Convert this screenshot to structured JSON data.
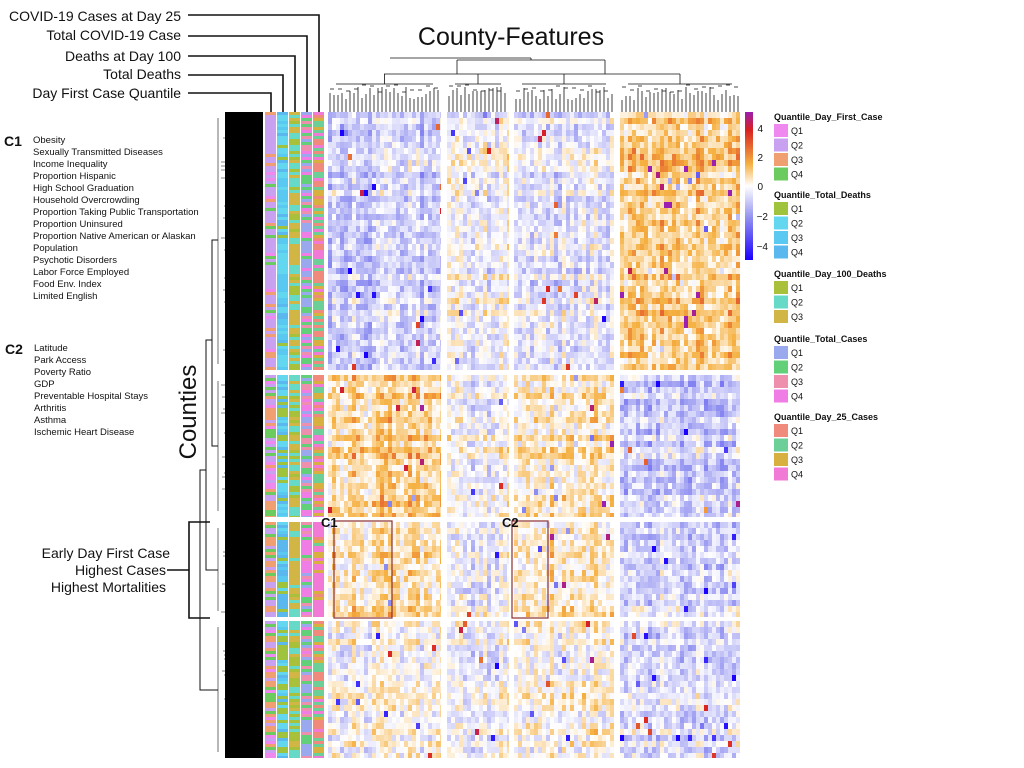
{
  "chart_data": {
    "type": "heatmap",
    "title": "County-Features",
    "ylabel": "Counties",
    "annotation_track_labels": [
      "COVID-19 Cases at Day 25",
      "Total COVID-19 Case",
      "Deaths at Day 100",
      "Total Deaths",
      "Day First Case Quantile"
    ],
    "column_clusters": [
      {
        "id": "C1",
        "features": [
          "Obesity",
          "Sexually Transmitted Diseases",
          "Income Inequality",
          "Proportion Hispanic",
          "High School Graduation",
          "Household Overcrowding",
          "Proportion Taking Public Transportation",
          "Proportion Uninsured",
          "Proportion Native American or Alaskan",
          "Population",
          "Psychotic Disorders",
          "Labor Force Employed",
          "Food Env. Index",
          "Limited English"
        ]
      },
      {
        "id": "C2",
        "features": [
          "Latitude",
          "Park Access",
          "Poverty Ratio",
          "GDP",
          "Preventable Hospital Stays",
          "Arthritis",
          "Asthma",
          "Ischemic Heart Disease"
        ]
      }
    ],
    "highlighted_row_cluster": [
      "Early Day First Case",
      "Highest Cases",
      "Highest Mortalities"
    ],
    "colorbar": {
      "ticks": [
        "4",
        "2",
        "0",
        "−2",
        "−4"
      ],
      "range": [
        -4,
        4
      ],
      "colors": [
        "#1a00ff",
        "#8f8ff0",
        "#ffffff",
        "#f5b040",
        "#d82020",
        "#9b1fb0"
      ]
    },
    "legends": [
      {
        "title": "Quantile_Day_First_Case",
        "items": [
          {
            "label": "Q1",
            "color": "#ef88ef"
          },
          {
            "label": "Q2",
            "color": "#c8a2f0"
          },
          {
            "label": "Q3",
            "color": "#f0a070"
          },
          {
            "label": "Q4",
            "color": "#6ccb5f"
          }
        ]
      },
      {
        "title": "Quantile_Total_Deaths",
        "items": [
          {
            "label": "Q1",
            "color": "#9fc33d"
          },
          {
            "label": "Q2",
            "color": "#63d6f0"
          },
          {
            "label": "Q3",
            "color": "#59c9f2"
          },
          {
            "label": "Q4",
            "color": "#5bb8ee"
          }
        ]
      },
      {
        "title": "Quantile_Day_100_Deaths",
        "items": [
          {
            "label": "Q1",
            "color": "#a9c13a"
          },
          {
            "label": "Q2",
            "color": "#66d9c7"
          },
          {
            "label": "Q3",
            "color": "#d1b545"
          }
        ]
      },
      {
        "title": "Quantile_Total_Cases",
        "items": [
          {
            "label": "Q1",
            "color": "#9aa8ee"
          },
          {
            "label": "Q2",
            "color": "#62cf79"
          },
          {
            "label": "Q3",
            "color": "#ee8fae"
          },
          {
            "label": "Q4",
            "color": "#f07ce6"
          }
        ]
      },
      {
        "title": "Quantile_Day_25_Cases",
        "items": [
          {
            "label": "Q1",
            "color": "#ef8a7c"
          },
          {
            "label": "Q2",
            "color": "#6ccf98"
          },
          {
            "label": "Q3",
            "color": "#d8b040"
          },
          {
            "label": "Q4",
            "color": "#f07ad5"
          }
        ]
      }
    ]
  }
}
